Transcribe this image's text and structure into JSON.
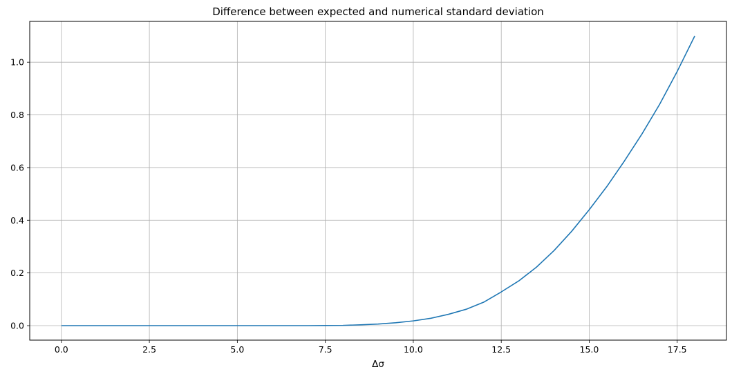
{
  "chart_data": {
    "type": "line",
    "title": "Difference between expected and numerical standard deviation",
    "xlabel": "Δσ",
    "ylabel": "",
    "xlim": [
      -0.9,
      18.9
    ],
    "ylim": [
      -0.055,
      1.155
    ],
    "grid": true,
    "x_ticks": [
      "0.0",
      "2.5",
      "5.0",
      "7.5",
      "10.0",
      "12.5",
      "15.0",
      "17.5"
    ],
    "y_ticks": [
      "0.0",
      "0.2",
      "0.4",
      "0.6",
      "0.8",
      "1.0"
    ],
    "series": [
      {
        "color": "#1f77b4",
        "x": [
          0,
          1,
          2,
          3,
          4,
          5,
          6,
          7,
          7.5,
          8,
          8.5,
          9,
          9.5,
          10,
          10.5,
          11,
          11.5,
          12,
          12.5,
          13,
          13.5,
          14,
          14.5,
          15,
          15.5,
          16,
          16.5,
          17,
          17.5,
          18
        ],
        "y": [
          0,
          0,
          0,
          0,
          0,
          0,
          0,
          0,
          0.0005,
          0.001,
          0.003,
          0.006,
          0.011,
          0.018,
          0.028,
          0.043,
          0.062,
          0.089,
          0.128,
          0.17,
          0.222,
          0.285,
          0.358,
          0.44,
          0.528,
          0.625,
          0.728,
          0.84,
          0.965,
          1.1
        ]
      }
    ]
  }
}
